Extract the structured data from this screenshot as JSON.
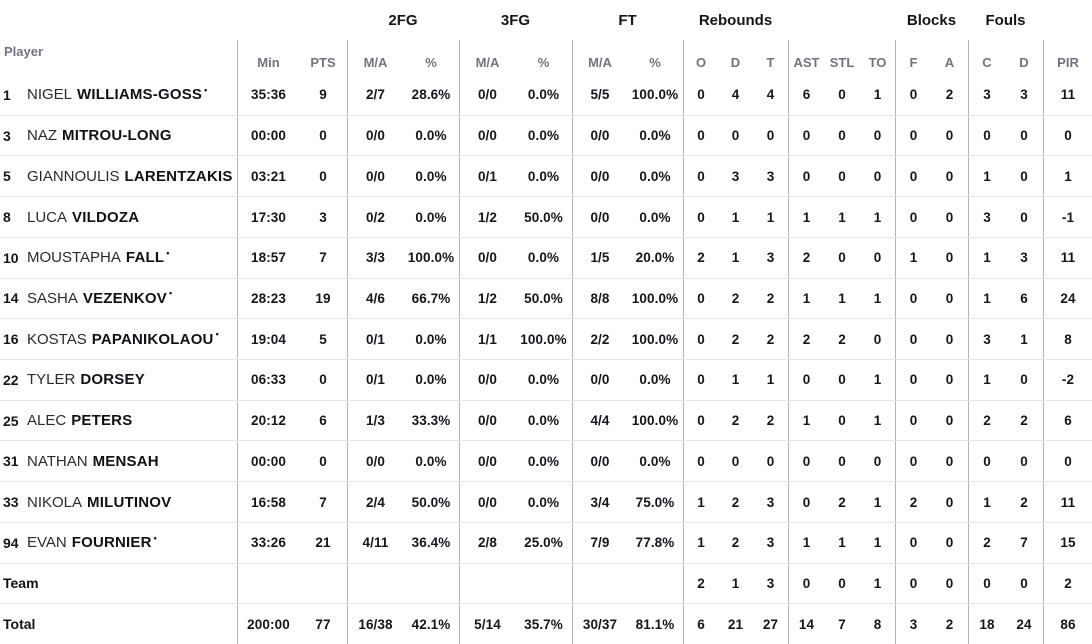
{
  "table": {
    "group_headers": {
      "fg2": "2FG",
      "fg3": "3FG",
      "ft": "FT",
      "rebounds": "Rebounds",
      "blocks": "Blocks",
      "fouls": "Fouls"
    },
    "column_headers": {
      "player": "Player",
      "min": "Min",
      "pts": "PTS",
      "ma": "M/A",
      "pct": "%",
      "reb_o": "O",
      "reb_d": "D",
      "reb_t": "T",
      "ast": "AST",
      "stl": "STL",
      "to": "TO",
      "blk_f": "F",
      "blk_a": "A",
      "foul_c": "C",
      "foul_d": "D",
      "pir": "PIR"
    },
    "starter_mark": "•",
    "players": [
      {
        "number": "1",
        "first_name": "NIGEL",
        "last_name": "WILLIAMS-GOSS",
        "starter": true,
        "stats": [
          "35:36",
          "9",
          "2/7",
          "28.6%",
          "0/0",
          "0.0%",
          "5/5",
          "100.0%",
          "0",
          "4",
          "4",
          "6",
          "0",
          "1",
          "0",
          "2",
          "3",
          "3",
          "11"
        ]
      },
      {
        "number": "3",
        "first_name": "NAZ",
        "last_name": "MITROU-LONG",
        "starter": false,
        "stats": [
          "00:00",
          "0",
          "0/0",
          "0.0%",
          "0/0",
          "0.0%",
          "0/0",
          "0.0%",
          "0",
          "0",
          "0",
          "0",
          "0",
          "0",
          "0",
          "0",
          "0",
          "0",
          "0"
        ]
      },
      {
        "number": "5",
        "first_name": "GIANNOULIS",
        "last_name": "LARENTZAKIS",
        "starter": false,
        "stats": [
          "03:21",
          "0",
          "0/0",
          "0.0%",
          "0/1",
          "0.0%",
          "0/0",
          "0.0%",
          "0",
          "3",
          "3",
          "0",
          "0",
          "0",
          "0",
          "0",
          "1",
          "0",
          "1"
        ]
      },
      {
        "number": "8",
        "first_name": "LUCA",
        "last_name": "VILDOZA",
        "starter": false,
        "stats": [
          "17:30",
          "3",
          "0/2",
          "0.0%",
          "1/2",
          "50.0%",
          "0/0",
          "0.0%",
          "0",
          "1",
          "1",
          "1",
          "1",
          "1",
          "0",
          "0",
          "3",
          "0",
          "-1"
        ]
      },
      {
        "number": "10",
        "first_name": "MOUSTAPHA",
        "last_name": "FALL",
        "starter": true,
        "stats": [
          "18:57",
          "7",
          "3/3",
          "100.0%",
          "0/0",
          "0.0%",
          "1/5",
          "20.0%",
          "2",
          "1",
          "3",
          "2",
          "0",
          "0",
          "1",
          "0",
          "1",
          "3",
          "11"
        ]
      },
      {
        "number": "14",
        "first_name": "SASHA",
        "last_name": "VEZENKOV",
        "starter": true,
        "stats": [
          "28:23",
          "19",
          "4/6",
          "66.7%",
          "1/2",
          "50.0%",
          "8/8",
          "100.0%",
          "0",
          "2",
          "2",
          "1",
          "1",
          "1",
          "0",
          "0",
          "1",
          "6",
          "24"
        ]
      },
      {
        "number": "16",
        "first_name": "KOSTAS",
        "last_name": "PAPANIKOLAOU",
        "starter": true,
        "stats": [
          "19:04",
          "5",
          "0/1",
          "0.0%",
          "1/1",
          "100.0%",
          "2/2",
          "100.0%",
          "0",
          "2",
          "2",
          "2",
          "2",
          "0",
          "0",
          "0",
          "3",
          "1",
          "8"
        ]
      },
      {
        "number": "22",
        "first_name": "TYLER",
        "last_name": "DORSEY",
        "starter": false,
        "stats": [
          "06:33",
          "0",
          "0/1",
          "0.0%",
          "0/0",
          "0.0%",
          "0/0",
          "0.0%",
          "0",
          "1",
          "1",
          "0",
          "0",
          "1",
          "0",
          "0",
          "1",
          "0",
          "-2"
        ]
      },
      {
        "number": "25",
        "first_name": "ALEC",
        "last_name": "PETERS",
        "starter": false,
        "stats": [
          "20:12",
          "6",
          "1/3",
          "33.3%",
          "0/0",
          "0.0%",
          "4/4",
          "100.0%",
          "0",
          "2",
          "2",
          "1",
          "0",
          "1",
          "0",
          "0",
          "2",
          "2",
          "6"
        ]
      },
      {
        "number": "31",
        "first_name": "NATHAN",
        "last_name": "MENSAH",
        "starter": false,
        "stats": [
          "00:00",
          "0",
          "0/0",
          "0.0%",
          "0/0",
          "0.0%",
          "0/0",
          "0.0%",
          "0",
          "0",
          "0",
          "0",
          "0",
          "0",
          "0",
          "0",
          "0",
          "0",
          "0"
        ]
      },
      {
        "number": "33",
        "first_name": "NIKOLA",
        "last_name": "MILUTINOV",
        "starter": false,
        "stats": [
          "16:58",
          "7",
          "2/4",
          "50.0%",
          "0/0",
          "0.0%",
          "3/4",
          "75.0%",
          "1",
          "2",
          "3",
          "0",
          "2",
          "1",
          "2",
          "0",
          "1",
          "2",
          "11"
        ]
      },
      {
        "number": "94",
        "first_name": "EVAN",
        "last_name": "FOURNIER",
        "starter": true,
        "stats": [
          "33:26",
          "21",
          "4/11",
          "36.4%",
          "2/8",
          "25.0%",
          "7/9",
          "77.8%",
          "1",
          "2",
          "3",
          "1",
          "1",
          "1",
          "0",
          "0",
          "2",
          "7",
          "15"
        ]
      }
    ],
    "team_row": {
      "label": "Team",
      "stats": [
        "",
        "",
        "",
        "",
        "",
        "",
        "",
        "",
        "2",
        "1",
        "3",
        "0",
        "0",
        "1",
        "0",
        "0",
        "0",
        "0",
        "2"
      ]
    },
    "total_row": {
      "label": "Total",
      "stats": [
        "200:00",
        "77",
        "16/38",
        "42.1%",
        "5/14",
        "35.7%",
        "30/37",
        "81.1%",
        "6",
        "21",
        "27",
        "14",
        "7",
        "8",
        "3",
        "2",
        "18",
        "24",
        "86"
      ]
    }
  },
  "colors": {
    "text": "#16161a",
    "header_text": "#73737d",
    "divider": "#b3b3bb",
    "row_line": "#e6e6ea",
    "background": "#ffffff"
  }
}
